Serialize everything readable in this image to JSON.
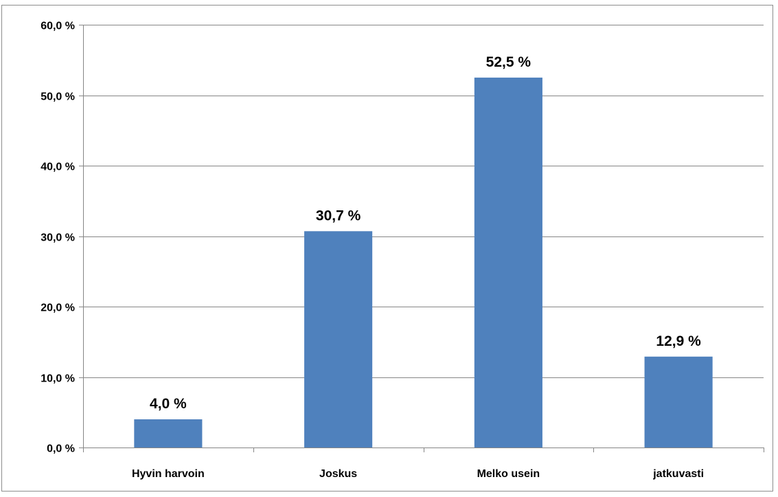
{
  "chart_data": {
    "type": "bar",
    "categories": [
      "Hyvin harvoin",
      "Joskus",
      "Melko usein",
      "jatkuvasti"
    ],
    "values": [
      4.0,
      30.7,
      52.5,
      12.9
    ],
    "data_labels": [
      "4,0 %",
      "30,7 %",
      "52,5 %",
      "12,9 %"
    ],
    "y_ticks": [
      0,
      10,
      20,
      30,
      40,
      50,
      60
    ],
    "y_tick_labels": [
      "0,0 %",
      "10,0 %",
      "20,0 %",
      "30,0 %",
      "40,0 %",
      "50,0 %",
      "60,0 %"
    ],
    "ylim": [
      0,
      60
    ],
    "grid": true,
    "legend": false,
    "bar_color": "#4f81bd",
    "grid_color": "#868686"
  }
}
